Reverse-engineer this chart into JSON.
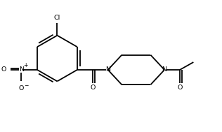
{
  "background": "#ffffff",
  "line_color": "#000000",
  "line_width": 1.3,
  "text_color": "#000000",
  "figsize": [
    3.16,
    1.89
  ],
  "dpi": 100,
  "xlim": [
    0,
    10
  ],
  "ylim": [
    0,
    6
  ]
}
